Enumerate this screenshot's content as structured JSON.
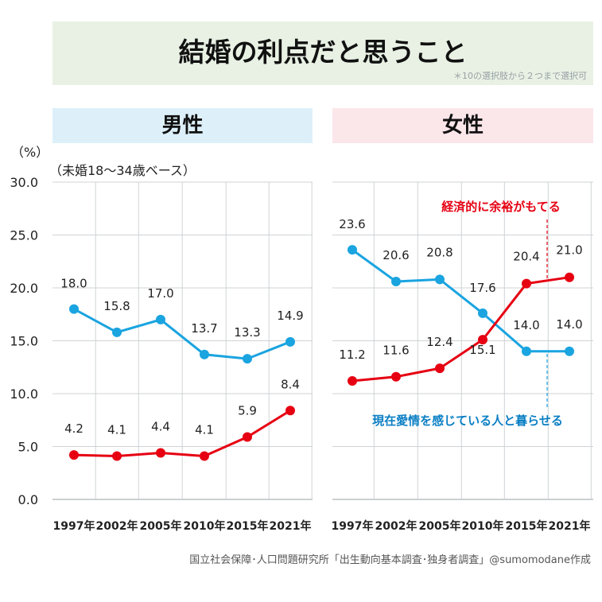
{
  "title": {
    "text": "結婚の利点だと思うこと",
    "note": "＊10の選択肢から２つまで選択可"
  },
  "panels": {
    "male_label": "男性",
    "female_label": "女性"
  },
  "unit_label": "（%）",
  "base_label": "（未婚18〜34歳ベース）",
  "source": "国立社会保障･人口問題研究所「出生動向基本調査･独身者調査」@sumomodane作成",
  "colors": {
    "red": "#e60012",
    "blue": "#1aa4e0",
    "grid": "#cfd3d6",
    "callout_blue": "#0a7fc4"
  },
  "chart_data": [
    {
      "type": "line",
      "panel": "男性",
      "categories": [
        "1997年",
        "2002年",
        "2005年",
        "2010年",
        "2015年",
        "2021年"
      ],
      "ylim": [
        0,
        30
      ],
      "yticks": [
        "0.0",
        "5.0",
        "10.0",
        "15.0",
        "20.0",
        "25.0",
        "30.0"
      ],
      "grid": true,
      "series": [
        {
          "color": "blue",
          "values": [
            18.0,
            15.8,
            17.0,
            13.7,
            13.3,
            14.9
          ],
          "labels": [
            "18.0",
            "15.8",
            "17.0",
            "13.7",
            "13.3",
            "14.9"
          ]
        },
        {
          "color": "red",
          "values": [
            4.2,
            4.1,
            4.4,
            4.1,
            5.9,
            8.4
          ],
          "labels": [
            "4.2",
            "4.1",
            "4.4",
            "4.1",
            "5.9",
            "8.4"
          ]
        }
      ]
    },
    {
      "type": "line",
      "panel": "女性",
      "categories": [
        "1997年",
        "2002年",
        "2005年",
        "2010年",
        "2015年",
        "2021年"
      ],
      "ylim": [
        0,
        30
      ],
      "grid": true,
      "series": [
        {
          "name": "現在愛情を感じている人と暮らせる",
          "color": "blue",
          "values": [
            23.6,
            20.6,
            20.8,
            17.6,
            14.0,
            14.0
          ],
          "labels": [
            "23.6",
            "20.6",
            "20.8",
            "17.6",
            "14.0",
            "14.0"
          ]
        },
        {
          "name": "経済的に余裕がもてる",
          "color": "red",
          "values": [
            11.2,
            11.6,
            12.4,
            15.1,
            20.4,
            21.0
          ],
          "labels": [
            "11.2",
            "11.6",
            "12.4",
            "15.1",
            "20.4",
            "21.0"
          ]
        }
      ]
    }
  ]
}
